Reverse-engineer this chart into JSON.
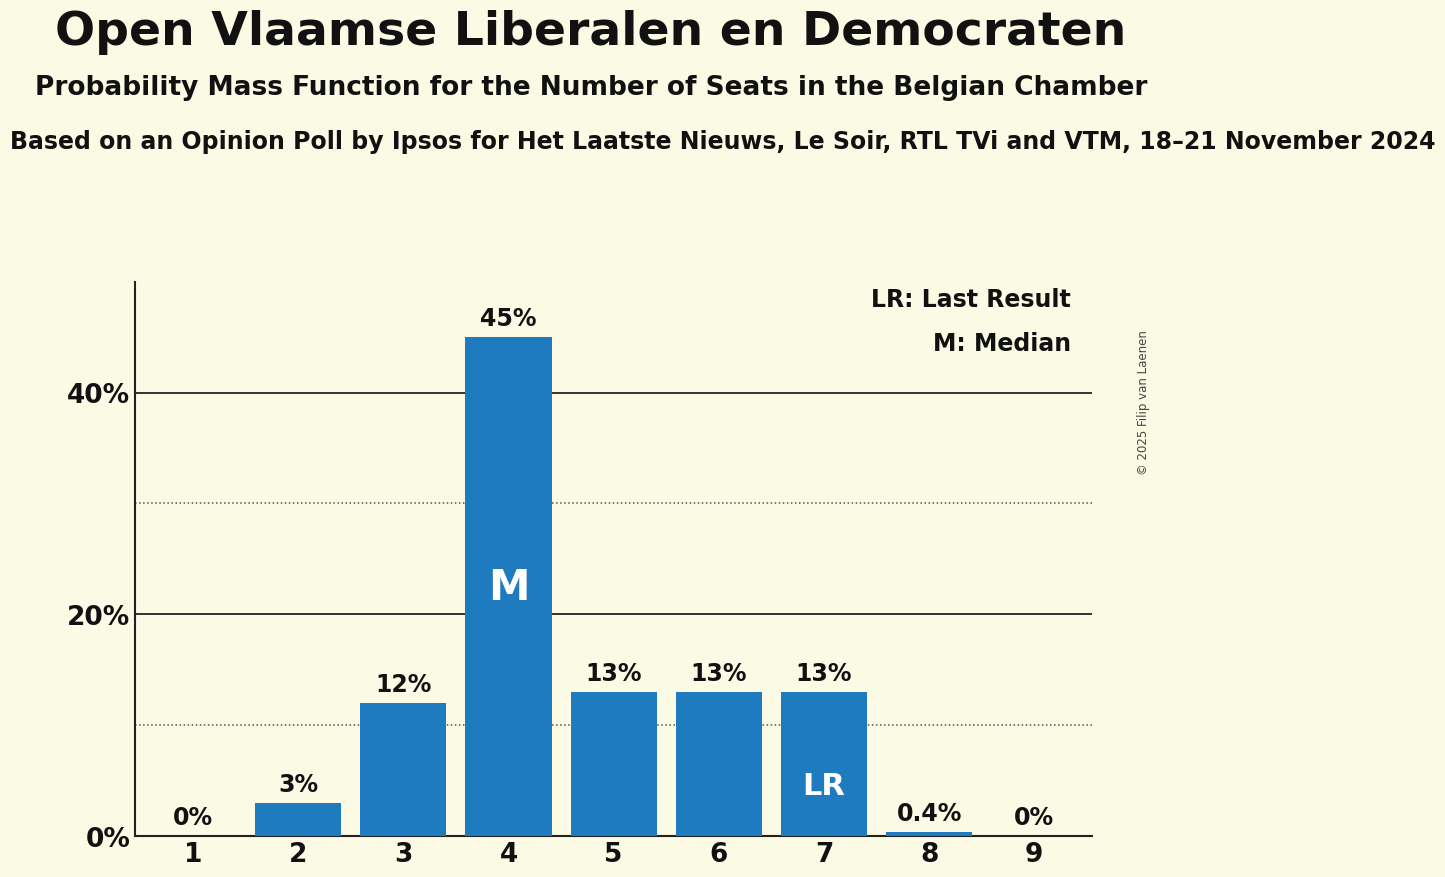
{
  "title": "Open Vlaamse Liberalen en Democraten",
  "subtitle": "Probability Mass Function for the Number of Seats in the Belgian Chamber",
  "subtitle2": "Based on an Opinion Poll by Ipsos for Het Laatste Nieuws, Le Soir, RTL TVi and VTM, 18–21 November 2024",
  "copyright": "© 2025 Filip van Laenen",
  "categories": [
    1,
    2,
    3,
    4,
    5,
    6,
    7,
    8,
    9
  ],
  "values": [
    0.0,
    3.0,
    12.0,
    45.0,
    13.0,
    13.0,
    13.0,
    0.4,
    0.0
  ],
  "bar_color": "#1f7bbf",
  "background_color": "#fafae5",
  "label_color_inside": "#ffffff",
  "label_color_outside": "#111111",
  "median_seat": 4,
  "last_result_seat": 7,
  "legend_lr": "LR: Last Result",
  "legend_m": "M: Median",
  "ylim": [
    0,
    50
  ],
  "ytick_positions": [
    0,
    10,
    20,
    30,
    40
  ],
  "ytick_labels": [
    "0%",
    "",
    "20%",
    "",
    "40%"
  ],
  "dotted_lines": [
    10,
    30
  ],
  "solid_lines": [
    20,
    40
  ],
  "title_fontsize": 34,
  "subtitle_fontsize": 19,
  "subtitle2_fontsize": 17,
  "bar_label_fontsize": 17,
  "legend_fontsize": 17,
  "tick_fontsize": 19
}
